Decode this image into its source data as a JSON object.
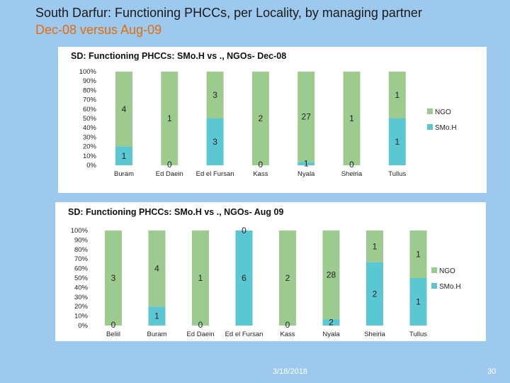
{
  "slide": {
    "title": "South Darfur: Functioning PHCCs, per Locality, by managing partner",
    "subtitle": "Dec-08 versus Aug-09",
    "date": "3/18/2018",
    "page_number": "30"
  },
  "colors": {
    "NGO": "#9dcb8f",
    "SMoH": "#5bc7d2"
  },
  "chart_data": [
    {
      "type": "bar",
      "stacked": "percent",
      "title": "SD: Functioning PHCCs: SMo.H vs ., NGOs- Dec-08",
      "categories": [
        "Buram",
        "Ed Daein",
        "Ed el Fursan",
        "Kass",
        "Nyala",
        "Sheiria",
        "Tullus"
      ],
      "yticks": [
        "100%",
        "90%",
        "80%",
        "70%",
        "60%",
        "50%",
        "40%",
        "30%",
        "20%",
        "10%",
        "0%"
      ],
      "ylim": [
        0,
        100
      ],
      "legend_position": "right",
      "series": [
        {
          "name": "SMo.H",
          "values": [
            1,
            0,
            3,
            0,
            1,
            0,
            1
          ]
        },
        {
          "name": "NGO",
          "values": [
            4,
            1,
            3,
            2,
            27,
            1,
            1
          ]
        }
      ]
    },
    {
      "type": "bar",
      "stacked": "percent",
      "title": "SD: Functioning PHCCs: SMo.H vs ., NGOs- Aug 09",
      "categories": [
        "Beliil",
        "Buram",
        "Ed Daein",
        "Ed el Fursan",
        "Kass",
        "Nyala",
        "Sheiria",
        "Tullus"
      ],
      "yticks": [
        "100%",
        "90%",
        "80%",
        "70%",
        "60%",
        "50%",
        "40%",
        "30%",
        "20%",
        "10%",
        "0%"
      ],
      "ylim": [
        0,
        100
      ],
      "legend_position": "right",
      "series": [
        {
          "name": "SMo.H",
          "values": [
            0,
            1,
            0,
            6,
            0,
            2,
            2,
            1
          ]
        },
        {
          "name": "NGO",
          "values": [
            3,
            4,
            1,
            0,
            2,
            28,
            1,
            1
          ]
        }
      ]
    }
  ]
}
